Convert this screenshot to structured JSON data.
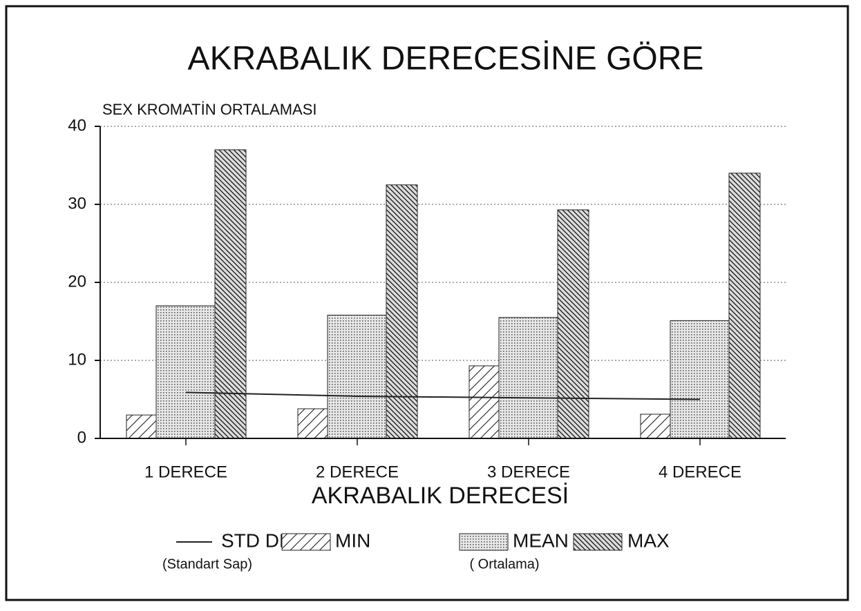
{
  "chart_data": {
    "type": "bar",
    "title": "AKRABALIK DERECESİNE GÖRE",
    "y_axis_label": "SEX KROMATİN ORTALAMASI",
    "x_axis_label": "AKRABALIK DERECESİ",
    "categories": [
      "1 DERECE",
      "2 DERECE",
      "3 DERECE",
      "4 DERECE"
    ],
    "series": [
      {
        "name": "STD DEV",
        "note": "(Standart Sap)",
        "type": "line",
        "color": "#222222",
        "values": [
          5.9,
          5.4,
          5.2,
          5.0
        ]
      },
      {
        "name": "MIN",
        "color": "#333333",
        "values": [
          3.0,
          3.8,
          9.3,
          3.1
        ]
      },
      {
        "name": "MEAN",
        "note": "( Ortalama)",
        "color": "#888888",
        "values": [
          17.0,
          15.8,
          15.5,
          15.1
        ]
      },
      {
        "name": "MAX",
        "color": "#111111",
        "values": [
          37.0,
          32.5,
          29.3,
          34.0
        ]
      }
    ],
    "ylim": [
      0,
      40
    ],
    "yticks": [
      0,
      10,
      20,
      30,
      40
    ],
    "grid": true
  }
}
